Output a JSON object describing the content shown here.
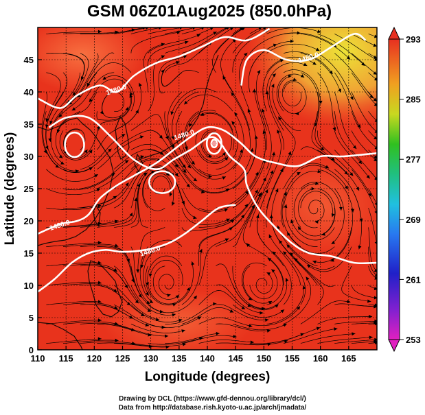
{
  "chart_data": {
    "type": "heatmap",
    "title": "GSM 06Z01Aug2025 (850.0hPa)",
    "xlabel": "Longitude (degrees)",
    "ylabel": "Latitude  (degrees)",
    "xlim": [
      110,
      170
    ],
    "ylim": [
      0,
      50
    ],
    "x_ticks": [
      110,
      115,
      120,
      125,
      130,
      135,
      140,
      145,
      150,
      155,
      160,
      165
    ],
    "y_ticks": [
      0,
      5,
      10,
      15,
      20,
      25,
      30,
      35,
      40,
      45
    ],
    "grid": true,
    "colorbar": {
      "range": [
        253,
        293
      ],
      "ticks": [
        253,
        261,
        269,
        277,
        285,
        293
      ]
    },
    "contour_labels": [
      {
        "text": "1480.0",
        "lon": 124,
        "lat": 40
      },
      {
        "text": "1480.0",
        "lon": 158,
        "lat": 45
      },
      {
        "text": "1480.0",
        "lon": 136,
        "lat": 33
      },
      {
        "text": "1480.0",
        "lon": 114,
        "lat": 19
      },
      {
        "text": "1480.0",
        "lon": 130,
        "lat": 15
      }
    ],
    "contours": [
      [
        [
          110,
          39
        ],
        [
          114,
          37.5
        ],
        [
          117,
          39.5
        ],
        [
          121,
          41
        ],
        [
          124,
          40
        ],
        [
          127,
          42.5
        ],
        [
          131,
          44.5
        ],
        [
          135,
          45.5
        ],
        [
          139,
          47
        ],
        [
          143,
          48.5
        ],
        [
          147,
          48
        ],
        [
          151,
          49.8
        ]
      ],
      [
        [
          146,
          41
        ],
        [
          147,
          45
        ],
        [
          150,
          46.5
        ],
        [
          154,
          45
        ],
        [
          158,
          45
        ],
        [
          162,
          47
        ],
        [
          166,
          49
        ],
        [
          168,
          48
        ]
      ],
      [
        [
          110,
          18
        ],
        [
          114,
          19.5
        ],
        [
          117,
          20
        ],
        [
          119,
          21
        ],
        [
          121,
          23.5
        ],
        [
          124,
          25.5
        ],
        [
          127,
          27
        ],
        [
          131,
          29
        ],
        [
          134,
          31
        ],
        [
          137,
          33
        ],
        [
          140,
          34.5
        ],
        [
          143,
          34
        ],
        [
          146,
          32
        ],
        [
          148.5,
          30
        ],
        [
          152,
          29
        ],
        [
          156,
          28.5
        ],
        [
          160,
          30
        ],
        [
          164,
          30
        ],
        [
          170,
          30.5
        ]
      ],
      [
        [
          112,
          34.5
        ],
        [
          115,
          36
        ],
        [
          119,
          36
        ],
        [
          123,
          33
        ],
        [
          127,
          29.5
        ],
        [
          131,
          28
        ],
        [
          134,
          29.5
        ],
        [
          137,
          31
        ],
        [
          141,
          33
        ],
        [
          144,
          30
        ],
        [
          146.5,
          28
        ],
        [
          147,
          25.5
        ],
        [
          149,
          22
        ],
        [
          152,
          19
        ],
        [
          155,
          16.5
        ],
        [
          158,
          15
        ],
        [
          162,
          14.5
        ],
        [
          166,
          13.5
        ],
        [
          170,
          13.5
        ]
      ],
      [
        [
          110,
          9
        ],
        [
          113,
          11
        ],
        [
          116,
          13.5
        ],
        [
          119,
          15
        ],
        [
          122,
          15.5
        ],
        [
          125,
          15.2
        ],
        [
          129,
          15.5
        ],
        [
          133,
          16.5
        ],
        [
          136,
          18
        ],
        [
          139,
          20
        ],
        [
          142,
          22
        ],
        [
          145,
          22.5
        ]
      ]
    ],
    "closed_contours": [
      {
        "lon": 116.5,
        "lat": 31.8,
        "rx": 1.7,
        "ry": 1.9
      },
      {
        "lon": 141.2,
        "lat": 32.0,
        "rx": 1.3,
        "ry": 1.6
      },
      {
        "lon": 141.2,
        "lat": 32.0,
        "rx": 0.5,
        "ry": 0.6
      },
      {
        "lon": 132.0,
        "lat": 26.0,
        "rx": 2.3,
        "ry": 1.7
      }
    ],
    "notes_cyclone_center": {
      "lon": 141.2,
      "lat": 32.0
    }
  },
  "credits": {
    "line1": "Drawing by DCL (https://www.gfd-dennou.org/library/dcl/)",
    "line2": "Data from http://database.rish.kyoto-u.ac.jp/arch/jmadata/"
  },
  "colors": {
    "field_warm": "#e8331c",
    "field_hot": "#f25a28",
    "field_yellow": "#e8e830",
    "stream": "#000000",
    "contour": "#ffffff"
  }
}
